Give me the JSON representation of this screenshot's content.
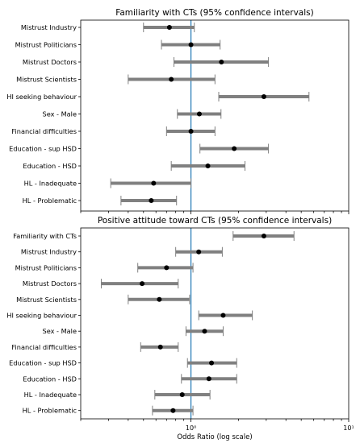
{
  "chart_data": [
    {
      "type": "forest",
      "title": "Familiarity with CTs (95% confidence intervals)",
      "xscale": "log",
      "xlim": [
        0.2,
        10
      ],
      "reference_line": 1,
      "rows": [
        {
          "label": "Mistrust Industry",
          "or": 0.73,
          "lo": 0.5,
          "hi": 1.05
        },
        {
          "label": "Mistrust Politicians",
          "or": 1.0,
          "lo": 0.65,
          "hi": 1.53
        },
        {
          "label": "Mistrust Doctors",
          "or": 1.56,
          "lo": 0.78,
          "hi": 3.1
        },
        {
          "label": "Mistrust Scientists",
          "or": 0.75,
          "lo": 0.4,
          "hi": 1.42
        },
        {
          "label": "HI seeking behaviour",
          "or": 2.9,
          "lo": 1.5,
          "hi": 5.6
        },
        {
          "label": "Sex - Male",
          "or": 1.13,
          "lo": 0.82,
          "hi": 1.55
        },
        {
          "label": "Financial difficulties",
          "or": 1.0,
          "lo": 0.7,
          "hi": 1.42
        },
        {
          "label": "Education - sup HSD",
          "or": 1.88,
          "lo": 1.14,
          "hi": 3.1
        },
        {
          "label": "Education - HSD",
          "or": 1.28,
          "lo": 0.75,
          "hi": 2.2
        },
        {
          "label": "HL - Inadequate",
          "or": 0.58,
          "lo": 0.31,
          "hi": 1.0
        },
        {
          "label": "HL - Problematic",
          "or": 0.56,
          "lo": 0.36,
          "hi": 0.81
        }
      ]
    },
    {
      "type": "forest",
      "title": "Positive attitude toward CTs (95% confidence intervals)",
      "xscale": "log",
      "xlim": [
        0.2,
        10
      ],
      "xlabel": "Odds Ratio (log scale)",
      "xticks": [
        {
          "value": 1,
          "label": "10⁰"
        },
        {
          "value": 10,
          "label": "10¹"
        }
      ],
      "reference_line": 1,
      "rows": [
        {
          "label": "Familiarity with CTs",
          "or": 2.9,
          "lo": 1.85,
          "hi": 4.5
        },
        {
          "label": "Mistrust Industry",
          "or": 1.12,
          "lo": 0.8,
          "hi": 1.58
        },
        {
          "label": "Mistrust Politicians",
          "or": 0.7,
          "lo": 0.46,
          "hi": 1.03
        },
        {
          "label": "Mistrust Doctors",
          "or": 0.49,
          "lo": 0.27,
          "hi": 0.83
        },
        {
          "label": "Mistrust Scientists",
          "or": 0.63,
          "lo": 0.4,
          "hi": 0.98
        },
        {
          "label": "HI seeking behaviour",
          "or": 1.6,
          "lo": 1.12,
          "hi": 2.45
        },
        {
          "label": "Sex - Male",
          "or": 1.22,
          "lo": 0.93,
          "hi": 1.6
        },
        {
          "label": "Financial difficulties",
          "or": 0.64,
          "lo": 0.48,
          "hi": 0.83
        },
        {
          "label": "Education - sup HSD",
          "or": 1.35,
          "lo": 0.95,
          "hi": 1.95
        },
        {
          "label": "Education - HSD",
          "or": 1.3,
          "lo": 0.87,
          "hi": 1.95
        },
        {
          "label": "HL - Inadequate",
          "or": 0.88,
          "lo": 0.59,
          "hi": 1.32
        },
        {
          "label": "HL - Problematic",
          "or": 0.77,
          "lo": 0.57,
          "hi": 1.03
        }
      ]
    }
  ],
  "colors": {
    "bar": "#808080",
    "cap": "#808080",
    "point": "#000000",
    "reference_line": "#1f77b4",
    "axes": "#000000"
  }
}
